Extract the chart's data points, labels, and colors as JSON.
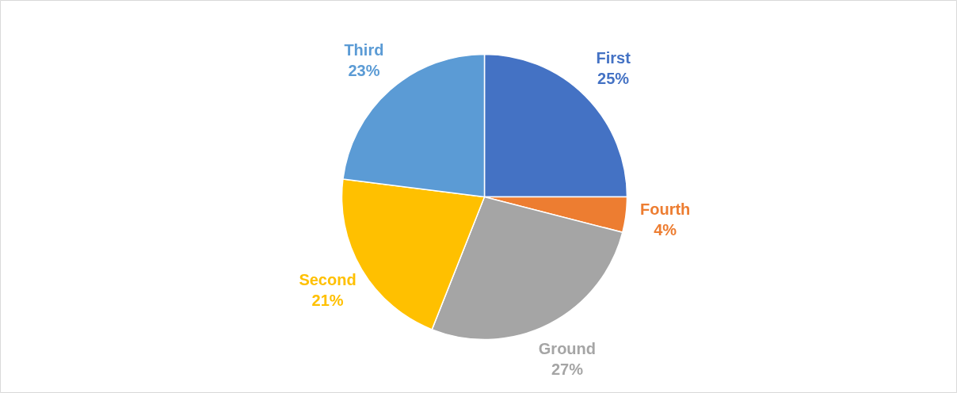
{
  "chart_data": {
    "type": "pie",
    "categories": [
      "First",
      "Fourth",
      "Ground",
      "Second",
      "Third"
    ],
    "values": [
      25,
      4,
      27,
      21,
      23
    ],
    "colors": [
      "#4472c4",
      "#ed7d31",
      "#a5a5a5",
      "#ffc000",
      "#5b9bd5"
    ],
    "value_labels": [
      "25%",
      "4%",
      "27%",
      "21%",
      "23%"
    ]
  }
}
